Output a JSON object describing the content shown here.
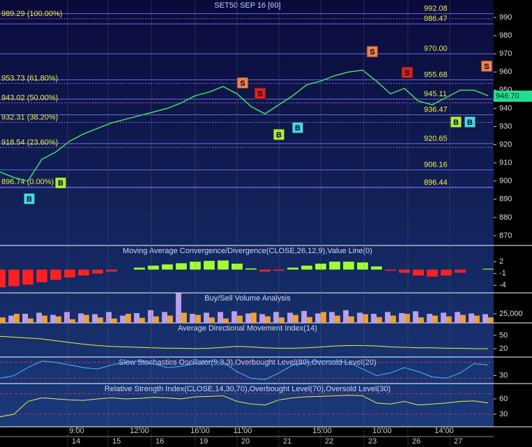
{
  "chart_data": [
    {
      "type": "line",
      "title": "SET50 SEP 16  [60]",
      "color": "#40e060",
      "x": [
        0,
        2,
        4,
        6,
        8,
        10,
        12,
        14,
        16,
        18,
        20,
        22,
        24,
        26,
        28,
        30,
        32,
        34,
        36,
        38,
        40,
        42,
        44,
        46,
        48,
        50,
        52,
        54,
        56,
        58,
        60,
        62,
        64,
        66,
        68,
        70
      ],
      "values": [
        905,
        902,
        900,
        912,
        916,
        922,
        926,
        929,
        932,
        934,
        936,
        938,
        940,
        943,
        947,
        949,
        952,
        948,
        941,
        937,
        942,
        947,
        953,
        955,
        958,
        960,
        961,
        955,
        948,
        951,
        944,
        942,
        946,
        950,
        950,
        947
      ],
      "xlim": [
        0,
        70.8
      ],
      "ylim": [
        864.6,
        999.6
      ],
      "yticks": [
        990,
        980,
        970,
        960,
        950,
        940,
        930,
        920,
        910,
        900,
        890,
        880,
        870
      ],
      "xticks": [
        {
          "value": 11,
          "label": "9:00"
        },
        {
          "value": 20,
          "label": "12:00"
        },
        {
          "value": 28.7,
          "label": "16:00"
        },
        {
          "value": 34.8,
          "label": "11:00"
        },
        {
          "value": 46.2,
          "label": "15:00"
        },
        {
          "value": 54.8,
          "label": "10:00"
        },
        {
          "value": 63.7,
          "label": "14:00"
        }
      ],
      "day_ticks": [
        {
          "value": 9.7,
          "label": "14"
        },
        {
          "value": 15.5,
          "label": "15"
        },
        {
          "value": 21.7,
          "label": "16"
        },
        {
          "value": 28,
          "label": "19"
        },
        {
          "value": 34,
          "label": "20"
        },
        {
          "value": 40,
          "label": "21"
        },
        {
          "value": 46,
          "label": "22"
        },
        {
          "value": 52.2,
          "label": "23"
        },
        {
          "value": 58.5,
          "label": "26"
        },
        {
          "value": 64.5,
          "label": "27"
        }
      ],
      "levels": [
        {
          "value": 992.08,
          "label": "992.08"
        },
        {
          "value": 986.47,
          "label": "986.47"
        },
        {
          "value": 970,
          "label": "970.00"
        },
        {
          "value": 955.68,
          "label": "955.68"
        },
        {
          "value": 945.11,
          "label": "945.11"
        },
        {
          "value": 936.47,
          "label": "936.47"
        },
        {
          "value": 920.65,
          "label": "920.65"
        },
        {
          "value": 906.16,
          "label": "906.16"
        },
        {
          "value": 896.44,
          "label": "896.44"
        }
      ],
      "fib": [
        {
          "value": 989.29,
          "label": "989.29 (100.00%)"
        },
        {
          "value": 953.73,
          "label": "953.73 (61.80%)"
        },
        {
          "value": 943.02,
          "label": "943.02 (50.00%)"
        },
        {
          "value": 932.31,
          "label": "932.31 (38.20%)"
        },
        {
          "value": 918.54,
          "label": "918.54 (23.60%)"
        },
        {
          "value": 896.74,
          "label": "896.74 (0.00%)"
        }
      ],
      "last": {
        "value": 946.7,
        "label": "946.70"
      },
      "signals": [
        {
          "label": "B",
          "x": 4.2,
          "price": 890.3,
          "color": "#40d8f0"
        },
        {
          "label": "B",
          "x": 8.7,
          "price": 899,
          "color": "#a8f040"
        },
        {
          "label": "B",
          "x": 40,
          "price": 925.6,
          "color": "#a8f040"
        },
        {
          "label": "B",
          "x": 42.7,
          "price": 929.4,
          "color": "#40d8f0"
        },
        {
          "label": "B",
          "x": 65.4,
          "price": 932.5,
          "color": "#a8f040"
        },
        {
          "label": "B",
          "x": 67.4,
          "price": 932.5,
          "color": "#40d8f0"
        },
        {
          "label": "S",
          "x": 34.8,
          "price": 954,
          "color": "#f08050"
        },
        {
          "label": "S",
          "x": 37.3,
          "price": 948.2,
          "color": "#e02020"
        },
        {
          "label": "S",
          "x": 53.4,
          "price": 971.2,
          "color": "#f08050"
        },
        {
          "label": "S",
          "x": 58.4,
          "price": 959.7,
          "color": "#e02020"
        },
        {
          "label": "S",
          "x": 69.8,
          "price": 963.2,
          "color": "#f08050"
        }
      ]
    },
    {
      "type": "bar",
      "title": "Moving Average Convergence/Divergence(CLOSE,26,12,9),Value Line(0)",
      "up_color": "#a0ff30",
      "down_color": "#ff2020",
      "values": [
        -4.5,
        -4.2,
        -3.8,
        -3.2,
        -2.6,
        -2,
        -1.5,
        -1,
        -0.5,
        0,
        0.5,
        1,
        1.3,
        1.6,
        2,
        2.2,
        2.3,
        1.5,
        0.3,
        -0.5,
        -0.3,
        0.5,
        1,
        1.5,
        2,
        2,
        1.8,
        0.8,
        -0.3,
        -0.8,
        -1.5,
        -1.8,
        -1.5,
        -0.8,
        0,
        0.2
      ],
      "ylim": [
        -5.9,
        6.1
      ],
      "yticks": [
        2,
        -1,
        -4
      ]
    },
    {
      "type": "bar",
      "title": "Buy/Sell Volume Analysis",
      "series": [
        {
          "color": "#b9a0e8",
          "values": [
            30000,
            20000,
            25000,
            28000,
            22000,
            30000,
            26000,
            24000,
            30000,
            20000,
            27000,
            35000,
            30000,
            82000,
            25000,
            28000,
            30000,
            32000,
            26000,
            24000,
            30000,
            28000,
            33000,
            26000,
            30000,
            35000,
            28000,
            25000,
            30000,
            27000,
            32000,
            25000,
            28000,
            30000,
            26000,
            24000
          ]
        },
        {
          "color": "#f0a030",
          "values": [
            15000,
            25000,
            12000,
            20000,
            18000,
            10000,
            22000,
            15000,
            12000,
            25000,
            14000,
            18000,
            20000,
            28000,
            22000,
            15000,
            12000,
            20000,
            28000,
            18000,
            15000,
            22000,
            16000,
            30000,
            20000,
            18000,
            24000,
            16000,
            20000,
            25000,
            15000,
            20000,
            18000,
            22000,
            20000,
            15000
          ]
        }
      ],
      "ylim": [
        0,
        82700
      ],
      "yticks": [
        {
          "value": 25000,
          "label": "25,000"
        }
      ]
    },
    {
      "type": "line",
      "title": "Average Directional Movement Index(14)",
      "color": "#f0f040",
      "values": [
        48,
        46,
        44,
        42,
        38,
        34,
        30,
        27,
        25,
        24,
        23,
        22,
        21,
        21,
        20,
        21,
        23,
        25,
        24,
        22,
        21,
        21,
        22,
        24,
        26,
        27,
        27,
        26,
        24,
        23,
        22,
        22,
        21,
        21,
        20,
        20
      ],
      "ylim": [
        1,
        78.4
      ],
      "yticks": [
        50,
        20
      ]
    },
    {
      "type": "line",
      "title": "Slow Stochastics Oscillator(9,3,3),Overbought Level(80),Oversold Level(20)",
      "color": "#40c0ff",
      "values": [
        20,
        30,
        60,
        85,
        80,
        70,
        60,
        55,
        70,
        80,
        85,
        75,
        60,
        65,
        75,
        85,
        80,
        45,
        20,
        15,
        40,
        70,
        80,
        85,
        85,
        80,
        55,
        30,
        40,
        60,
        45,
        25,
        20,
        40,
        75,
        70
      ],
      "ylim": [
        0,
        100
      ],
      "yticks": [
        30
      ],
      "levels": [
        80,
        20
      ]
    },
    {
      "type": "line",
      "title": "Relative Strength Index(CLOSE,14,30,70),Overbought Level(70),Oversold Level(30)",
      "color": "#f0f040",
      "values": [
        25,
        30,
        55,
        62,
        60,
        58,
        57,
        60,
        62,
        60,
        61,
        63,
        62,
        60,
        64,
        65,
        66,
        55,
        50,
        48,
        58,
        62,
        64,
        65,
        66,
        67,
        66,
        52,
        50,
        55,
        48,
        50,
        52,
        55,
        56,
        52
      ],
      "ylim": [
        5.4,
        90
      ],
      "yticks": [
        60,
        30
      ],
      "levels": [
        70,
        30
      ]
    }
  ]
}
